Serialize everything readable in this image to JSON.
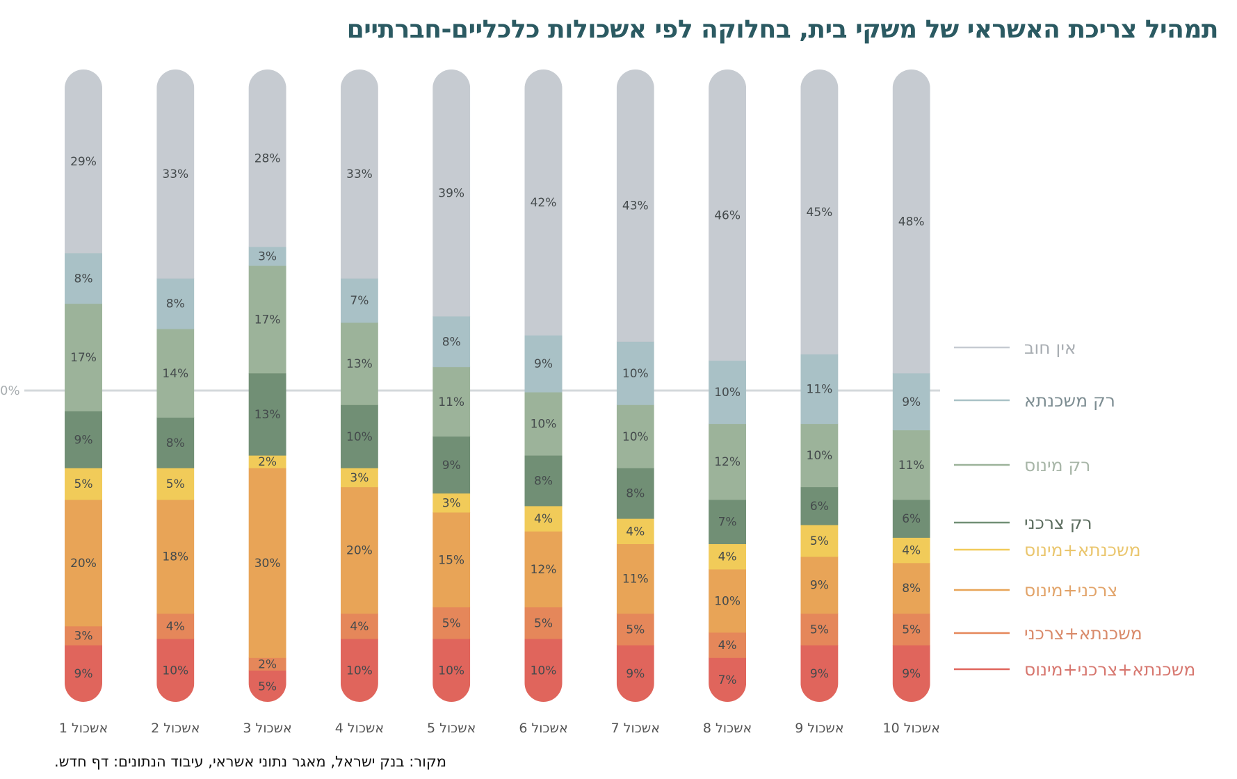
{
  "title": "תמהיל צריכת האשראי של משקי בית, בחלוקה לפי אשכולות כלכליים-חברתיים",
  "source": "מקור: בנק ישראל, מאגר נתוני אשראי, עיבוד הנתונים: דף חדש.",
  "chart_data": {
    "type": "bar",
    "stacked": true,
    "orientation": "vertical",
    "title": "תמהיל צריכת האשראי של משקי בית, בחלוקה לפי אשכולות כלכליים-חברתיים",
    "xlabel": "",
    "ylabel": "",
    "ylim": [
      0,
      100
    ],
    "reference_line": {
      "label": "0%"
    },
    "legend_position": "right",
    "categories": [
      "אשכול 1",
      "אשכול 2",
      "אשכול 3",
      "אשכול 4",
      "אשכול 5",
      "אשכול 6",
      "אשכול 7",
      "אשכול 8",
      "אשכול 9",
      "אשכול 10"
    ],
    "series": [
      {
        "name": "משכנתא+צרכני+מינוס",
        "color": "#e0655c",
        "text_color": "#d7776f",
        "values": [
          9,
          10,
          5,
          10,
          10,
          10,
          9,
          7,
          9,
          9
        ]
      },
      {
        "name": "משכנתא+צרכני",
        "color": "#e5875a",
        "text_color": "#d98a6a",
        "values": [
          3,
          4,
          2,
          4,
          5,
          5,
          5,
          4,
          5,
          5
        ]
      },
      {
        "name": "צרכני+מינוס",
        "color": "#e8a457",
        "text_color": "#e2a46a",
        "values": [
          20,
          18,
          30,
          20,
          15,
          12,
          11,
          10,
          9,
          8
        ]
      },
      {
        "name": "משכנתא+מינוס",
        "color": "#f1cb59",
        "text_color": "#eac66e",
        "values": [
          5,
          5,
          2,
          3,
          3,
          4,
          4,
          4,
          5,
          4
        ]
      },
      {
        "name": "רק צרכני",
        "color": "#718f75",
        "text_color": "#5d6e60",
        "values": [
          9,
          8,
          13,
          10,
          9,
          8,
          8,
          7,
          6,
          6
        ]
      },
      {
        "name": "רק מינוס",
        "color": "#9cb39a",
        "text_color": "#a8b6a8",
        "values": [
          17,
          14,
          17,
          13,
          11,
          10,
          10,
          12,
          10,
          11
        ]
      },
      {
        "name": "רק משכנתא",
        "color": "#a9c1c6",
        "text_color": "#7d8d92",
        "values": [
          8,
          8,
          3,
          7,
          8,
          9,
          10,
          10,
          11,
          9
        ]
      },
      {
        "name": "אין חוב",
        "color": "#c6cbd1",
        "text_color": "#a9aeb3",
        "values": [
          29,
          33,
          28,
          33,
          39,
          42,
          43,
          46,
          45,
          48
        ]
      }
    ]
  }
}
